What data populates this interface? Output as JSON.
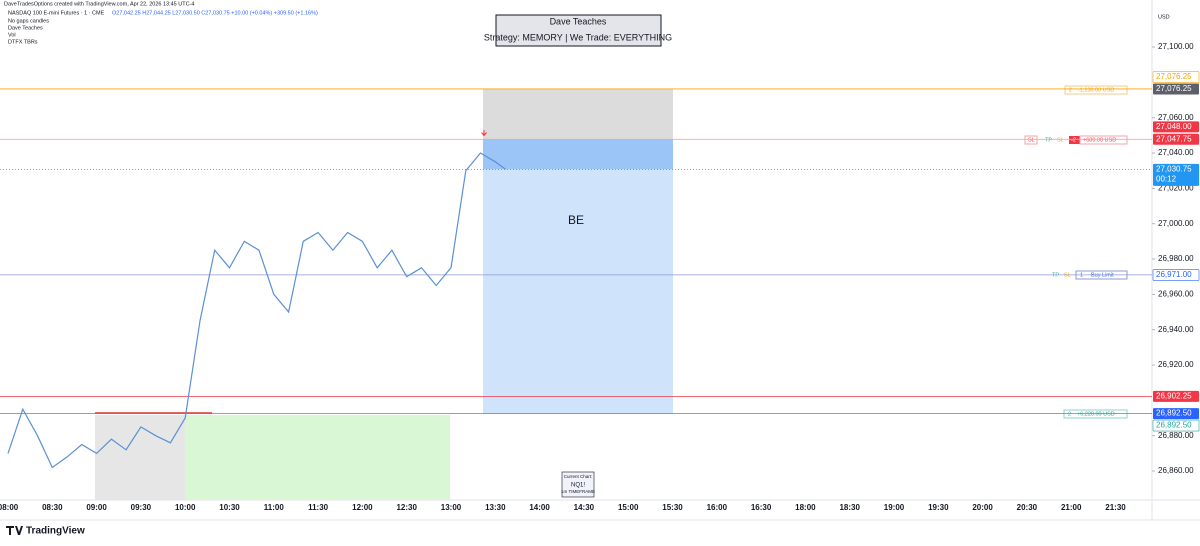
{
  "header": {
    "credit": "DaveTradesOptions created with TradingView.com, Apr 22, 2026 13:45 UTC-4",
    "symbol": "NASDAQ 100 E-mini Futures · 1 · CME",
    "ohlc": "O27,042.25 H27,044.25 L27,030.50 C27,030.75 +10.00 (+0.04%) +309.50 (+1.16%)",
    "indicators": [
      "No gaps candles",
      "Dave Teaches",
      "Vol",
      "DTFX TBRs"
    ]
  },
  "strategy_box": {
    "title": "Dave Teaches",
    "subtitle": "Strategy: MEMORY | We Trade: EVERYTHING"
  },
  "currency": "USD",
  "be_label": "BE",
  "countdown": "00:12",
  "order_tags": {
    "stop": [
      "2",
      "-1,130.00 USD"
    ],
    "entry": [
      "SL",
      "TP",
      "SL",
      "-2",
      "+680.00 USD"
    ],
    "limit": [
      "TP",
      "SL",
      "1",
      "Buy Limit"
    ],
    "target": [
      "2",
      "+6,220.00 USD"
    ]
  },
  "current_chart": [
    "Current Chart:",
    "NQ1!",
    "1m TIMEFRAME"
  ],
  "brand": "TradingView",
  "time_axis": [
    "08:00",
    "08:30",
    "09:00",
    "09:30",
    "10:00",
    "10:30",
    "11:00",
    "11:30",
    "12:00",
    "12:30",
    "13:00",
    "13:30",
    "14:00",
    "14:30",
    "15:00",
    "15:30",
    "16:00",
    "16:30",
    "18:00",
    "18:30",
    "19:00",
    "19:30",
    "20:00",
    "20:30",
    "21:00",
    "21:30"
  ],
  "levels": [
    {
      "value": 27076.25,
      "label": "27,076.25",
      "line_color": "#f7a600",
      "tag_bg": "#ffffff",
      "tag_fg": "#f7a600"
    },
    {
      "value": 27076.25,
      "label": "27,076.25",
      "line_color": null,
      "tag_bg": "#5d606b",
      "tag_fg": "#ffffff"
    },
    {
      "value": 27048.0,
      "label": "27,048.00",
      "line_color": null,
      "tag_bg": "#f23645",
      "tag_fg": "#ffffff"
    },
    {
      "value": 27047.75,
      "label": "27,047.75",
      "line_color": "#f5a3a9",
      "tag_bg": "#f23645",
      "tag_fg": "#ffffff"
    },
    {
      "value": 27030.75,
      "label": "27,030.75",
      "line_color": "#2196f3",
      "tag_bg": "#2196f3",
      "tag_fg": "#ffffff"
    },
    {
      "value": 26971.0,
      "label": "26,971.00",
      "line_color": "#8c9ad6",
      "tag_bg": "#ffffff",
      "tag_fg": "#2962ff"
    },
    {
      "value": 26902.25,
      "label": "26,902.25",
      "line_color": "#f23645",
      "tag_bg": "#f23645",
      "tag_fg": "#ffffff"
    },
    {
      "value": 26892.5,
      "label": "26,892.50",
      "line_color": "#26a69a",
      "tag_bg": "#2962ff",
      "tag_fg": "#ffffff"
    },
    {
      "value": 26892.5,
      "label": "26,892.50",
      "line_color": null,
      "tag_bg": "#ffffff",
      "tag_fg": "#26a69a"
    }
  ],
  "chart_data": {
    "type": "line",
    "color": "#5b8fd6",
    "x": [
      "08:00",
      "08:10",
      "08:20",
      "08:30",
      "08:40",
      "08:50",
      "09:00",
      "09:10",
      "09:20",
      "09:30",
      "09:40",
      "09:50",
      "10:00",
      "10:10",
      "10:20",
      "10:30",
      "10:40",
      "10:50",
      "11:00",
      "11:10",
      "11:20",
      "11:30",
      "11:40",
      "11:50",
      "12:00",
      "12:10",
      "12:20",
      "12:30",
      "12:40",
      "12:50",
      "13:00",
      "13:10",
      "13:20",
      "13:30",
      "13:37"
    ],
    "values": [
      26870,
      26895,
      26880,
      26862,
      26868,
      26875,
      26870,
      26878,
      26872,
      26885,
      26880,
      26876,
      26890,
      26945,
      26985,
      26975,
      26990,
      26985,
      26960,
      26950,
      26990,
      26995,
      26985,
      26995,
      26990,
      26975,
      26985,
      26970,
      26975,
      26965,
      26975,
      27030,
      27040,
      27035,
      27030.75
    ],
    "ylim": [
      26843.6,
      27126.6
    ],
    "yticks": [
      {
        "value": 27100,
        "label": "27,100.00"
      },
      {
        "value": 27060,
        "label": "27,060.00"
      },
      {
        "value": 27040,
        "label": "27,040.00"
      },
      {
        "value": 27020,
        "label": "27,020.00"
      },
      {
        "value": 27000,
        "label": "27,000.00"
      },
      {
        "value": 26980,
        "label": "26,980.00"
      },
      {
        "value": 26960,
        "label": "26,960.00"
      },
      {
        "value": 26940,
        "label": "26,940.00"
      },
      {
        "value": 26920,
        "label": "26,920.00"
      },
      {
        "value": 26880,
        "label": "26,880.00"
      },
      {
        "value": 26860,
        "label": "26,860.00"
      }
    ]
  }
}
